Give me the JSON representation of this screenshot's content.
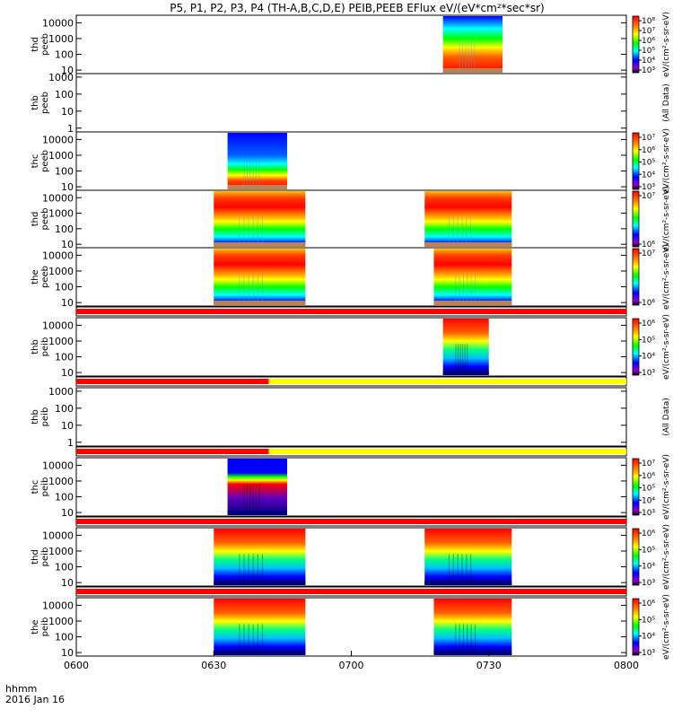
{
  "chart_data": {
    "type": "heatmap",
    "title": "P5, P1, P2, P3, P4 (TH-A,B,C,D,E) PEIB,PEEB EFlux eV/(eV*cm²*sec*sr)",
    "x_axis": {
      "ticks": [
        "0600",
        "0630",
        "0700",
        "0730",
        "0800"
      ],
      "label_line1": "hhmm",
      "label_line2": "2016 Jan 16"
    },
    "panels": [
      {
        "name": "thd peeb",
        "probe": "thd",
        "instrument": "peeb",
        "y_ticks": [
          "10",
          "100",
          "1000",
          "10000"
        ],
        "log_y": true,
        "colorbar_ticks": [
          "10³",
          "10⁴",
          "10⁵",
          "10⁶",
          "10⁷",
          "10⁸"
        ],
        "colorbar_label": "eV/(cm²-s-sr-eV)",
        "data_intervals": [
          [
            "07:20",
            "07:33"
          ]
        ]
      },
      {
        "name": "thb peeb",
        "probe": "thb",
        "instrument": "peeb",
        "y_ticks": [
          "1",
          "10",
          "100",
          "1000"
        ],
        "log_y": true,
        "colorbar_ticks": [],
        "colorbar_label": "(All Data)",
        "data_intervals": []
      },
      {
        "name": "thc peeb",
        "probe": "thc",
        "instrument": "peeb",
        "y_ticks": [
          "10",
          "100",
          "1000",
          "10000"
        ],
        "log_y": true,
        "colorbar_ticks": [
          "10³",
          "10⁴",
          "10⁵",
          "10⁶",
          "10⁷"
        ],
        "colorbar_label": "eV/(cm²-s-sr-eV)",
        "data_intervals": [
          [
            "06:33",
            "06:46"
          ]
        ]
      },
      {
        "name": "thd peeb",
        "probe": "thd",
        "instrument": "peeb",
        "y_ticks": [
          "10",
          "100",
          "1000",
          "10000"
        ],
        "log_y": true,
        "colorbar_ticks": [
          "10⁶",
          "10⁷"
        ],
        "colorbar_label": "eV/(cm²-s-sr-eV)",
        "data_intervals": [
          [
            "06:30",
            "06:50"
          ],
          [
            "07:16",
            "07:35"
          ]
        ]
      },
      {
        "name": "the peeb",
        "probe": "the",
        "instrument": "peeb",
        "y_ticks": [
          "10",
          "100",
          "1000",
          "10000"
        ],
        "log_y": true,
        "colorbar_ticks": [
          "10⁶",
          "10⁷"
        ],
        "colorbar_label": "eV/(cm²-s-sr-eV)",
        "data_intervals": [
          [
            "06:30",
            "06:50"
          ],
          [
            "07:18",
            "07:35"
          ]
        ]
      },
      {
        "name": "thb peib",
        "probe": "thb",
        "instrument": "peib",
        "y_ticks": [
          "10",
          "100",
          "1000",
          "10000"
        ],
        "log_y": true,
        "colorbar_ticks": [
          "10³",
          "10⁴",
          "10⁵",
          "10⁶"
        ],
        "colorbar_label": "eV/(cm²-s-sr-eV)",
        "data_intervals": [
          [
            "07:20",
            "07:30"
          ]
        ]
      },
      {
        "name": "thb peib",
        "probe": "thb",
        "instrument": "peib",
        "y_ticks": [
          "1",
          "10",
          "100",
          "1000"
        ],
        "log_y": true,
        "colorbar_ticks": [],
        "colorbar_label": "(All Data)",
        "data_intervals": []
      },
      {
        "name": "thc peib",
        "probe": "thc",
        "instrument": "peib",
        "y_ticks": [
          "10",
          "100",
          "1000",
          "10000"
        ],
        "log_y": true,
        "colorbar_ticks": [
          "10³",
          "10⁴",
          "10⁵",
          "10⁶",
          "10⁷"
        ],
        "colorbar_label": "eV/(cm²-s-sr-eV)",
        "data_intervals": [
          [
            "06:33",
            "06:46"
          ]
        ]
      },
      {
        "name": "thd peib",
        "probe": "thd",
        "instrument": "peib",
        "y_ticks": [
          "10",
          "100",
          "1000",
          "10000"
        ],
        "log_y": true,
        "colorbar_ticks": [
          "10³",
          "10⁴",
          "10⁵",
          "10⁶"
        ],
        "colorbar_label": "eV/(cm²-s-sr-eV)",
        "data_intervals": [
          [
            "06:30",
            "06:50"
          ],
          [
            "07:16",
            "07:35"
          ]
        ]
      },
      {
        "name": "the peib",
        "probe": "the",
        "instrument": "peib",
        "y_ticks": [
          "10",
          "100",
          "1000",
          "10000"
        ],
        "log_y": true,
        "colorbar_ticks": [
          "10³",
          "10⁴",
          "10⁵",
          "10⁶"
        ],
        "colorbar_label": "eV/(cm²-s-sr-eV)",
        "data_intervals": [
          [
            "06:30",
            "06:50"
          ],
          [
            "07:18",
            "07:35"
          ]
        ]
      }
    ],
    "status_bars": [
      {
        "after_panel": 5,
        "segments": [
          {
            "from": "06:00",
            "to": "08:00",
            "color": "#ff0000"
          }
        ]
      },
      {
        "after_panel": 6,
        "segments": [
          {
            "from": "06:00",
            "to": "06:42",
            "color": "#ff0000"
          },
          {
            "from": "06:42",
            "to": "08:00",
            "color": "#ffff00"
          }
        ]
      },
      {
        "after_panel": 7,
        "segments": [
          {
            "from": "06:00",
            "to": "06:42",
            "color": "#ff0000"
          },
          {
            "from": "06:42",
            "to": "08:00",
            "color": "#ffff00"
          }
        ]
      },
      {
        "after_panel": 8,
        "segments": [
          {
            "from": "06:00",
            "to": "08:00",
            "color": "#ff0000"
          }
        ]
      },
      {
        "after_panel": 9,
        "segments": [
          {
            "from": "06:00",
            "to": "08:00",
            "color": "#ff0000"
          }
        ]
      }
    ],
    "colors": {
      "colormap": [
        "#9400d3",
        "#0000ff",
        "#00ffff",
        "#00ff00",
        "#ffff00",
        "#ff8000",
        "#ff0000"
      ],
      "axis": "#000000"
    }
  }
}
